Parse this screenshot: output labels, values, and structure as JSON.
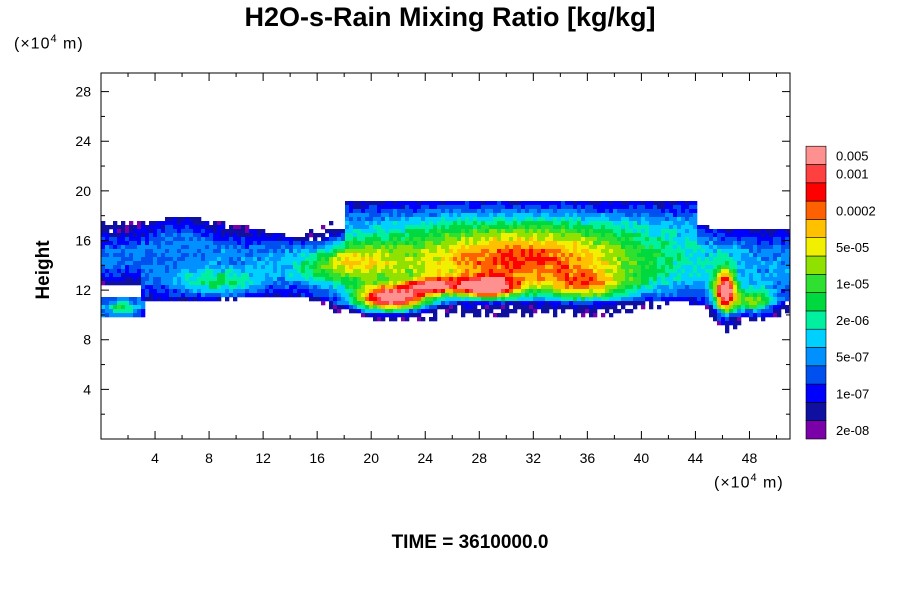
{
  "chart_data": {
    "type": "heatmap",
    "title": "H2O-s-Rain Mixing Ratio [kg/kg]",
    "ylabel": "Height",
    "y_unit": "(×10",
    "x_unit": "(×10",
    "unit_exp": "4",
    "unit_tail": " m)",
    "time_label": "TIME = 3610000.0",
    "xlim": [
      0,
      51
    ],
    "ylim": [
      0,
      29.5
    ],
    "x_ticks": [
      4,
      8,
      12,
      16,
      20,
      24,
      28,
      32,
      36,
      40,
      44,
      48
    ],
    "y_ticks": [
      4,
      8,
      12,
      16,
      20,
      24,
      28
    ],
    "colorbar": {
      "colors": [
        "#7a00a8",
        "#1010a0",
        "#0000ff",
        "#0050f0",
        "#0090ff",
        "#00d0ff",
        "#00f0a0",
        "#00d840",
        "#30e030",
        "#90e000",
        "#f0f000",
        "#ffc000",
        "#ff6000",
        "#ff0000",
        "#ff4040",
        "#ff9090"
      ],
      "labels": [
        {
          "text": "2e-08",
          "level": 0
        },
        {
          "text": "1e-07",
          "level": 2
        },
        {
          "text": "5e-07",
          "level": 4
        },
        {
          "text": "2e-06",
          "level": 6
        },
        {
          "text": "1e-05",
          "level": 8
        },
        {
          "text": "5e-05",
          "level": 10
        },
        {
          "text": "0.0002",
          "level": 12
        },
        {
          "text": "0.001",
          "level": 14
        },
        {
          "text": "0.005",
          "level": 15
        }
      ]
    }
  }
}
